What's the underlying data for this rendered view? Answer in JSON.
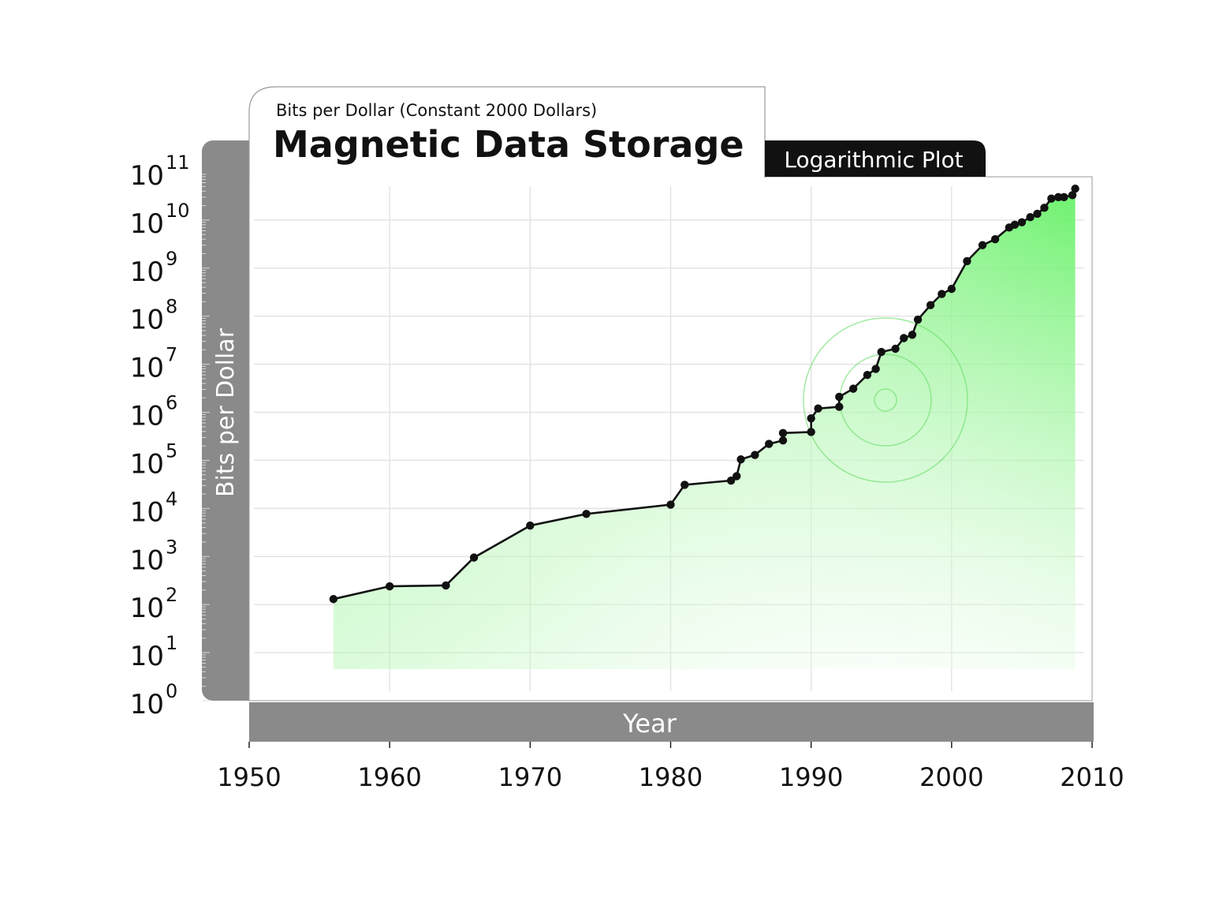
{
  "chart_data": {
    "type": "line",
    "subtitle": "Bits per Dollar (Constant 2000 Dollars)",
    "title": "Magnetic Data Storage",
    "badge": "Logarithmic Plot",
    "xlabel": "Year",
    "ylabel": "Bits per Dollar",
    "x_ticks": [
      "1950",
      "1960",
      "1970",
      "1980",
      "1990",
      "2000",
      "2010"
    ],
    "y_ticks": [
      {
        "base": "10",
        "exp": "0"
      },
      {
        "base": "10",
        "exp": "1"
      },
      {
        "base": "10",
        "exp": "2"
      },
      {
        "base": "10",
        "exp": "3"
      },
      {
        "base": "10",
        "exp": "4"
      },
      {
        "base": "10",
        "exp": "5"
      },
      {
        "base": "10",
        "exp": "6"
      },
      {
        "base": "10",
        "exp": "7"
      },
      {
        "base": "10",
        "exp": "8"
      },
      {
        "base": "10",
        "exp": "9"
      },
      {
        "base": "10",
        "exp": "10"
      },
      {
        "base": "10",
        "exp": "11"
      }
    ],
    "xlim": [
      1950,
      2010
    ],
    "ylim": [
      1,
      100000000000
    ],
    "yscale": "log",
    "grid": true,
    "line_color": "#111111",
    "fill_color": "#5df25d",
    "panel_color": "#8a8a8a",
    "series": [
      {
        "x": [
          1956,
          1960,
          1964,
          1966,
          1970,
          1974,
          1980,
          1981,
          1984.3,
          1984.7,
          1985,
          1986,
          1987,
          1988,
          1988,
          1990,
          1990,
          1990.5,
          1992,
          1992,
          1993,
          1994,
          1994.6,
          1995,
          1996,
          1996.6,
          1997.2,
          1997.6,
          1998.5,
          1999.3,
          2000,
          2001.1,
          2002.2,
          2003.1,
          2004.1,
          2004.5,
          2005,
          2005.6,
          2006.1,
          2006.6,
          2007.1,
          2007.6,
          2008,
          2008.6,
          2008.8
        ],
        "y": [
          130,
          240,
          250,
          950,
          4400,
          7700,
          12000,
          31000,
          38000,
          47000,
          105000,
          130000,
          220000,
          260000,
          370000,
          390000,
          750000,
          1200000,
          1300000,
          2100000,
          3100000,
          6000000,
          8000000,
          18000000,
          21000000,
          35000000,
          41000000,
          85000000,
          170000000,
          290000000,
          370000000,
          1400000000,
          3000000000,
          4000000000,
          7000000000,
          8000000000,
          9000000000,
          11500000000,
          13500000000,
          18000000000,
          28000000000,
          30000000000,
          30000000000,
          33000000000,
          45000000000
        ]
      }
    ]
  }
}
